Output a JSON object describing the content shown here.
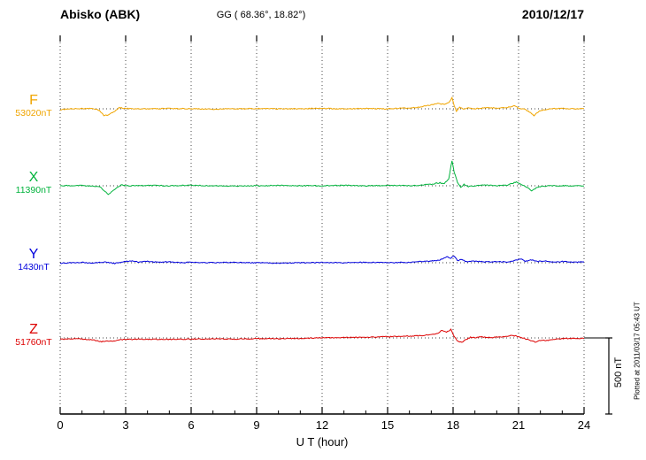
{
  "header": {
    "station": "Abisko (ABK)",
    "coords": "GG ( 68.36°,  18.82°)",
    "date": "2010/12/17"
  },
  "xaxis": {
    "label": "U T (hour)",
    "ticks": [
      0,
      3,
      6,
      9,
      12,
      15,
      18,
      21,
      24
    ],
    "range": [
      0,
      24
    ]
  },
  "scale_bar": {
    "label": "500 nT",
    "nT": 500
  },
  "footer_note": "Plotted at 2011/03/17 05:43 UT",
  "chart_data": {
    "type": "line",
    "title": "Abisko (ABK) magnetogram 2010/12/17",
    "xlabel": "U T (hour)",
    "xlim": [
      0,
      24
    ],
    "x_ticks": [
      0,
      3,
      6,
      9,
      12,
      15,
      18,
      21,
      24
    ],
    "grid": "vertical-dotted",
    "scale_nT": 500,
    "series": [
      {
        "name": "F",
        "baseline_label": "53020nT",
        "baseline_nT": 53020,
        "color": "#f0a500",
        "points": [
          [
            0,
            -5
          ],
          [
            0.5,
            0
          ],
          [
            1.5,
            2
          ],
          [
            1.8,
            -10
          ],
          [
            2.0,
            -45
          ],
          [
            2.2,
            -40
          ],
          [
            2.5,
            -15
          ],
          [
            2.7,
            8
          ],
          [
            3.0,
            2
          ],
          [
            4,
            0
          ],
          [
            5,
            2
          ],
          [
            6,
            0
          ],
          [
            7,
            -3
          ],
          [
            8,
            0
          ],
          [
            9,
            2
          ],
          [
            10,
            0
          ],
          [
            11,
            0
          ],
          [
            12,
            3
          ],
          [
            13,
            0
          ],
          [
            14,
            2
          ],
          [
            15,
            0
          ],
          [
            16,
            5
          ],
          [
            16.5,
            12
          ],
          [
            17.0,
            25
          ],
          [
            17.3,
            35
          ],
          [
            17.6,
            30
          ],
          [
            17.8,
            40
          ],
          [
            17.95,
            75
          ],
          [
            18.05,
            20
          ],
          [
            18.15,
            -15
          ],
          [
            18.3,
            10
          ],
          [
            18.5,
            -5
          ],
          [
            18.7,
            5
          ],
          [
            19,
            0
          ],
          [
            19.5,
            8
          ],
          [
            20,
            5
          ],
          [
            20.5,
            10
          ],
          [
            20.8,
            20
          ],
          [
            21.0,
            5
          ],
          [
            21.3,
            -5
          ],
          [
            21.5,
            -20
          ],
          [
            21.7,
            -45
          ],
          [
            21.9,
            -20
          ],
          [
            22.1,
            -8
          ],
          [
            22.5,
            0
          ],
          [
            23,
            2
          ],
          [
            23.5,
            0
          ],
          [
            24,
            0
          ]
        ]
      },
      {
        "name": "X",
        "baseline_label": "11390nT",
        "baseline_nT": 11390,
        "color": "#00b33c",
        "points": [
          [
            0,
            0
          ],
          [
            1,
            2
          ],
          [
            1.8,
            -5
          ],
          [
            2.0,
            -30
          ],
          [
            2.2,
            -55
          ],
          [
            2.4,
            -35
          ],
          [
            2.6,
            -10
          ],
          [
            2.8,
            5
          ],
          [
            3,
            0
          ],
          [
            4,
            2
          ],
          [
            5,
            0
          ],
          [
            6,
            3
          ],
          [
            7,
            0
          ],
          [
            8,
            -2
          ],
          [
            9,
            0
          ],
          [
            10,
            2
          ],
          [
            11,
            0
          ],
          [
            12,
            0
          ],
          [
            13,
            3
          ],
          [
            14,
            0
          ],
          [
            15,
            2
          ],
          [
            16,
            0
          ],
          [
            16.5,
            5
          ],
          [
            17,
            10
          ],
          [
            17.4,
            20
          ],
          [
            17.6,
            15
          ],
          [
            17.8,
            45
          ],
          [
            17.95,
            165
          ],
          [
            18.05,
            90
          ],
          [
            18.2,
            25
          ],
          [
            18.35,
            -10
          ],
          [
            18.5,
            10
          ],
          [
            18.7,
            -5
          ],
          [
            19,
            0
          ],
          [
            19.5,
            5
          ],
          [
            20,
            0
          ],
          [
            20.5,
            5
          ],
          [
            20.9,
            25
          ],
          [
            21.1,
            10
          ],
          [
            21.4,
            -10
          ],
          [
            21.6,
            -35
          ],
          [
            21.8,
            -15
          ],
          [
            22,
            -5
          ],
          [
            22.5,
            0
          ],
          [
            23,
            0
          ],
          [
            24,
            0
          ]
        ]
      },
      {
        "name": "Y",
        "baseline_label": "1430nT",
        "baseline_nT": 1430,
        "color": "#0000dd",
        "points": [
          [
            0,
            -3
          ],
          [
            0.5,
            0
          ],
          [
            1,
            3
          ],
          [
            1.5,
            -3
          ],
          [
            2,
            5
          ],
          [
            2.5,
            -5
          ],
          [
            3,
            8
          ],
          [
            3.3,
            12
          ],
          [
            3.6,
            5
          ],
          [
            4,
            10
          ],
          [
            4.3,
            4
          ],
          [
            5,
            6
          ],
          [
            5.5,
            0
          ],
          [
            6,
            3
          ],
          [
            7,
            0
          ],
          [
            8,
            3
          ],
          [
            9,
            0
          ],
          [
            10,
            -3
          ],
          [
            11,
            0
          ],
          [
            12,
            2
          ],
          [
            13,
            0
          ],
          [
            14,
            3
          ],
          [
            15,
            0
          ],
          [
            16,
            3
          ],
          [
            16.5,
            8
          ],
          [
            17,
            12
          ],
          [
            17.4,
            18
          ],
          [
            17.7,
            40
          ],
          [
            17.9,
            30
          ],
          [
            18.05,
            45
          ],
          [
            18.2,
            15
          ],
          [
            18.4,
            20
          ],
          [
            18.6,
            8
          ],
          [
            19,
            10
          ],
          [
            19.5,
            5
          ],
          [
            20,
            8
          ],
          [
            20.5,
            5
          ],
          [
            20.9,
            18
          ],
          [
            21.1,
            25
          ],
          [
            21.3,
            10
          ],
          [
            21.6,
            18
          ],
          [
            21.9,
            8
          ],
          [
            22.2,
            12
          ],
          [
            22.5,
            5
          ],
          [
            23,
            8
          ],
          [
            23.5,
            4
          ],
          [
            24,
            5
          ]
        ]
      },
      {
        "name": "Z",
        "baseline_label": "51760nT",
        "baseline_nT": 51760,
        "color": "#dd0000",
        "points": [
          [
            0,
            -8
          ],
          [
            0.5,
            -5
          ],
          [
            1,
            -8
          ],
          [
            1.5,
            -12
          ],
          [
            1.9,
            -25
          ],
          [
            2.1,
            -18
          ],
          [
            2.4,
            -22
          ],
          [
            2.7,
            -12
          ],
          [
            3,
            -10
          ],
          [
            4,
            -8
          ],
          [
            5,
            -10
          ],
          [
            6,
            -8
          ],
          [
            7,
            -6
          ],
          [
            8,
            -8
          ],
          [
            9,
            -5
          ],
          [
            10,
            -5
          ],
          [
            11,
            -3
          ],
          [
            12,
            0
          ],
          [
            13,
            3
          ],
          [
            14,
            5
          ],
          [
            15,
            8
          ],
          [
            16,
            12
          ],
          [
            16.5,
            15
          ],
          [
            17,
            20
          ],
          [
            17.3,
            30
          ],
          [
            17.5,
            50
          ],
          [
            17.7,
            40
          ],
          [
            17.9,
            55
          ],
          [
            18.05,
            10
          ],
          [
            18.2,
            -20
          ],
          [
            18.4,
            -30
          ],
          [
            18.6,
            -10
          ],
          [
            18.8,
            5
          ],
          [
            19,
            0
          ],
          [
            19.3,
            8
          ],
          [
            19.6,
            3
          ],
          [
            20,
            5
          ],
          [
            20.4,
            10
          ],
          [
            20.7,
            18
          ],
          [
            21,
            8
          ],
          [
            21.3,
            -5
          ],
          [
            21.6,
            -20
          ],
          [
            21.8,
            -28
          ],
          [
            22,
            -15
          ],
          [
            22.3,
            -18
          ],
          [
            22.6,
            -8
          ],
          [
            23,
            -5
          ],
          [
            23.5,
            -3
          ],
          [
            24,
            -3
          ]
        ]
      }
    ]
  }
}
